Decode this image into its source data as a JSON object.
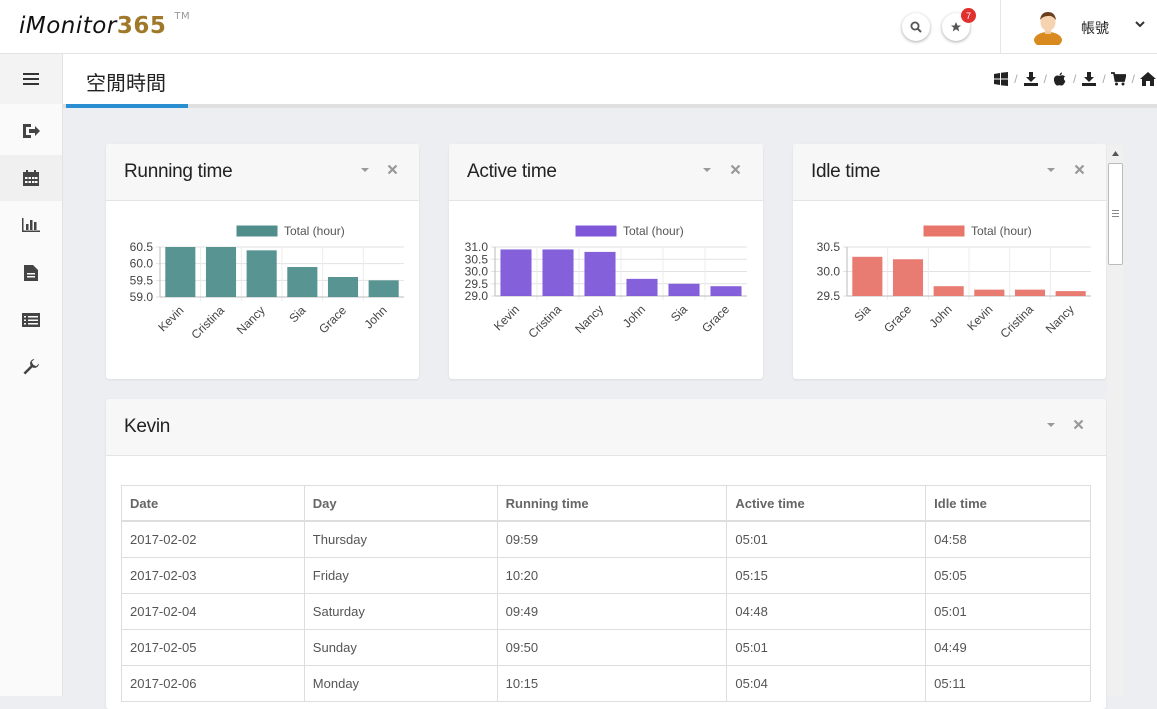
{
  "app": {
    "logo_text": "iMonitor",
    "logo_number": "365",
    "logo_tm": "TM",
    "notification_count": "7",
    "account_label": "帳號"
  },
  "icons": {
    "search": "search-icon",
    "star": "star-icon",
    "avatar": "user-avatar",
    "menu": "hamburger-icon",
    "sidebar": [
      "logout-icon",
      "calendar-icon",
      "bar-chart-icon",
      "document-icon",
      "list-icon",
      "wrench-icon"
    ],
    "breadcrumb": [
      "windows-icon",
      "download-icon",
      "apple-icon",
      "download-icon",
      "cart-icon",
      "home-icon"
    ]
  },
  "colors": {
    "running": "#4f8e8b",
    "active": "#7e57d9",
    "idle": "#e8756a",
    "accent": "#2a8fd0",
    "badge": "#e0312f"
  },
  "page": {
    "title": "空閒時間"
  },
  "panels": {
    "running": {
      "title": "Running time"
    },
    "active": {
      "title": "Active time"
    },
    "idle": {
      "title": "Idle time"
    },
    "detail": {
      "title": "Kevin"
    }
  },
  "chart_data": [
    {
      "type": "bar",
      "title": "Running time",
      "legend": "Total (hour)",
      "categories": [
        "Kevin",
        "Cristina",
        "Nancy",
        "Sia",
        "Grace",
        "John"
      ],
      "values": [
        60.5,
        60.5,
        60.4,
        59.9,
        59.6,
        59.5
      ],
      "ylim": [
        59.0,
        60.5
      ],
      "yticks": [
        "60.5",
        "60.0",
        "59.5",
        "59.0"
      ],
      "color": "#4f8e8b"
    },
    {
      "type": "bar",
      "title": "Active time",
      "legend": "Total (hour)",
      "categories": [
        "Kevin",
        "Cristina",
        "Nancy",
        "John",
        "Sia",
        "Grace"
      ],
      "values": [
        30.9,
        30.9,
        30.8,
        29.7,
        29.5,
        29.4
      ],
      "ylim": [
        29.0,
        31.0
      ],
      "yticks": [
        "31.0",
        "30.5",
        "30.0",
        "29.5",
        "29.0"
      ],
      "color": "#7e57d9"
    },
    {
      "type": "bar",
      "title": "Idle time",
      "legend": "Total (hour)",
      "categories": [
        "Sia",
        "Grace",
        "John",
        "Kevin",
        "Cristina",
        "Nancy"
      ],
      "values": [
        30.3,
        30.25,
        29.7,
        29.63,
        29.63,
        29.6
      ],
      "ylim": [
        29.5,
        30.5
      ],
      "yticks": [
        "30.5",
        "30.0",
        "29.5"
      ],
      "color": "#e8756a"
    }
  ],
  "table": {
    "headers": [
      "Date",
      "Day",
      "Running time",
      "Active time",
      "Idle time"
    ],
    "rows": [
      [
        "2017-02-02",
        "Thursday",
        "09:59",
        "05:01",
        "04:58"
      ],
      [
        "2017-02-03",
        "Friday",
        "10:20",
        "05:15",
        "05:05"
      ],
      [
        "2017-02-04",
        "Saturday",
        "09:49",
        "04:48",
        "05:01"
      ],
      [
        "2017-02-05",
        "Sunday",
        "09:50",
        "05:01",
        "04:49"
      ],
      [
        "2017-02-06",
        "Monday",
        "10:15",
        "05:04",
        "05:11"
      ]
    ]
  }
}
